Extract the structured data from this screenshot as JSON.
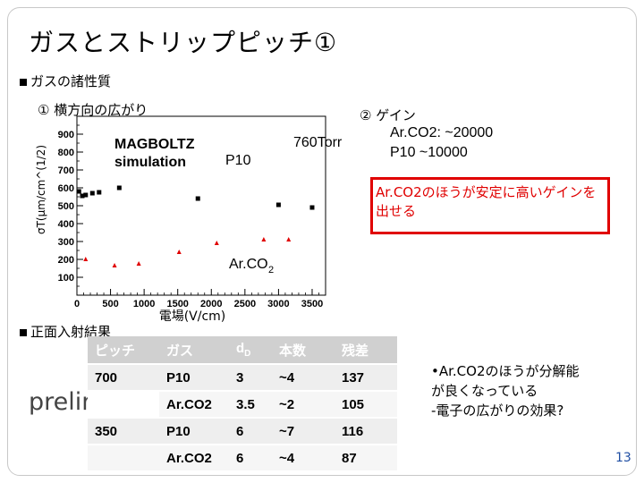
{
  "slide": {
    "title": "ガスとストリップピッチ①",
    "section1": "ガスの諸性質",
    "sub1": "① 横方向の広がり",
    "sub2": "② ゲイン",
    "gain_arco2": "Ar.CO2: ~20000",
    "gain_p10": "P10 ~10000",
    "red_note": "Ar.CO2のほうが安定に高いゲインを出せる",
    "section2": "正面入射結果",
    "preliminary": "preliminary",
    "note_line1": "•Ar.CO2のほうが分解能",
    "note_line2": "が良くなっている",
    "note_line3": "-電子の広がりの効果?",
    "page_number": "13"
  },
  "chart_data": {
    "type": "scatter",
    "xlabel": "電場(V/cm)",
    "ylabel": "σT(μm/cm^(1/2)",
    "xlim": [
      0,
      3700
    ],
    "ylim": [
      0,
      1000
    ],
    "xticks": [
      "0",
      "500",
      "1000",
      "1500",
      "2000",
      "2500",
      "3000",
      "3500"
    ],
    "yticks": [
      "100",
      "200",
      "300",
      "400",
      "500",
      "600",
      "700",
      "800",
      "900"
    ],
    "annotations": {
      "magboltz1": "MAGBOLTZ",
      "magboltz2": "simulation",
      "p10": "P10",
      "pressure": "760Torr",
      "arco2": "Ar.CO",
      "arco2_sub": "2"
    },
    "series": [
      {
        "name": "P10",
        "marker": "square",
        "color": "#000000",
        "x": [
          30,
          80,
          130,
          230,
          330,
          630,
          1800,
          3000,
          3500
        ],
        "y": [
          580,
          555,
          560,
          570,
          575,
          600,
          540,
          505,
          490
        ]
      },
      {
        "name": "Ar.CO2",
        "marker": "triangle",
        "color": "#e00000",
        "x": [
          130,
          560,
          920,
          1520,
          2080,
          2780,
          3150
        ],
        "y": [
          200,
          165,
          175,
          240,
          290,
          310,
          310
        ]
      }
    ]
  },
  "table": {
    "headers": [
      "ピッチ",
      "ガス",
      "dD",
      "本数",
      "残差"
    ],
    "header_d_main": "d",
    "header_d_sub": "D",
    "rows": [
      [
        "700",
        "P10",
        "3",
        "~4",
        "137"
      ],
      [
        "",
        "Ar.CO2",
        "3.5",
        "~2",
        "105"
      ],
      [
        "350",
        "P10",
        "6",
        "~7",
        "116"
      ],
      [
        "",
        "Ar.CO2",
        "6",
        "~4",
        "87"
      ]
    ]
  }
}
